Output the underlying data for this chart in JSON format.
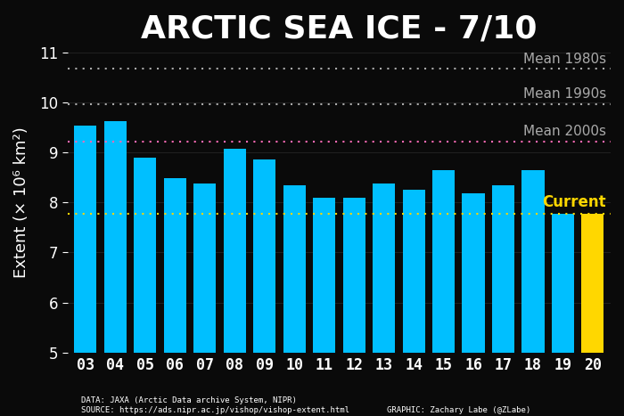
{
  "title": "ARCTIC SEA ICE - 7/10",
  "ylabel": "Extent (× 10⁶ km²)",
  "categories": [
    "03",
    "04",
    "05",
    "06",
    "07",
    "08",
    "09",
    "10",
    "11",
    "12",
    "13",
    "14",
    "15",
    "16",
    "17",
    "18",
    "19",
    "20"
  ],
  "values": [
    9.54,
    9.62,
    8.9,
    8.49,
    8.38,
    9.07,
    8.85,
    8.35,
    8.1,
    8.1,
    8.38,
    8.25,
    8.65,
    8.18,
    8.35,
    8.65,
    7.78,
    7.78
  ],
  "current_value": 7.78,
  "mean_1980s": 10.67,
  "mean_1990s": 9.97,
  "mean_2000s": 9.22,
  "current_mean": 7.78,
  "mean_1980s_label": "Mean 1980s",
  "mean_1990s_label": "Mean 1990s",
  "mean_2000s_label": "Mean 2000s",
  "current_label": "Current",
  "ylim_min": 5,
  "ylim_max": 11,
  "background_color": "#0a0a0a",
  "bar_color_main": "#00BFFF",
  "bar_color_current": "#FFD700",
  "mean_line_color": "#AAAAAA",
  "mean_2000s_line_color": "#FF69B4",
  "current_line_color": "#FFD700",
  "data_text_left": "DATA: JAXA (Arctic Data archive System, NIPR)\nSOURCE: https://ads.nipr.ac.jp/vishop/vishop-extent.html",
  "graphic_text_right": "GRAPHIC: Zachary Labe (@ZLabe)",
  "title_fontsize": 26,
  "ylabel_fontsize": 13,
  "tick_fontsize": 12,
  "annotation_fontsize": 11
}
